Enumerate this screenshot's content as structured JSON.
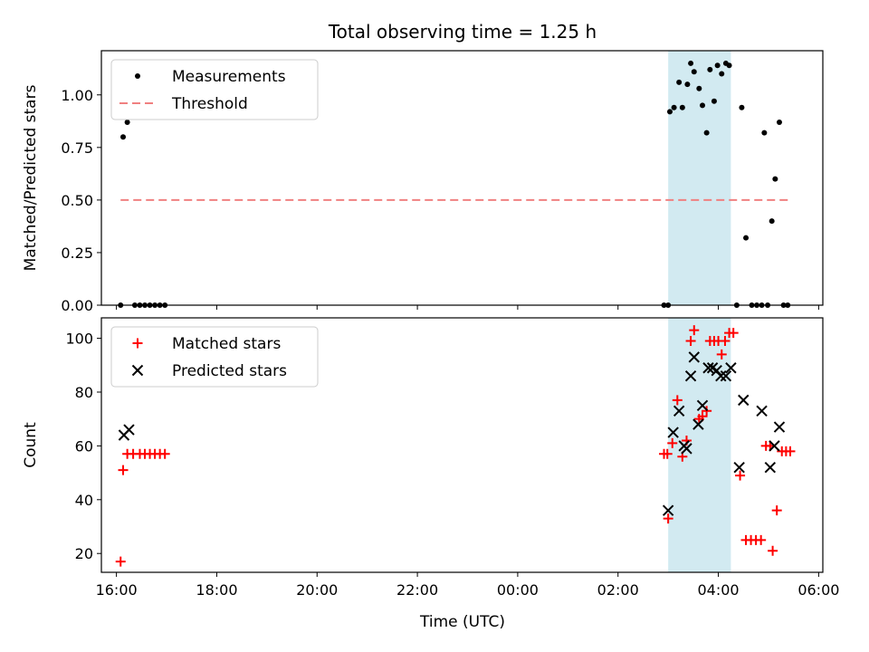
{
  "figure": {
    "title": "Total observing time = 1.25 h",
    "xlabel": "Time (UTC)"
  },
  "chart_data": [
    {
      "type": "scatter",
      "ylabel": "Matched/Predicted stars",
      "xlim": [
        "15:42",
        "06:05"
      ],
      "ylim": [
        0,
        1.21
      ],
      "xticks": [
        "16:00",
        "18:00",
        "20:00",
        "22:00",
        "00:00",
        "02:00",
        "04:00",
        "06:00"
      ],
      "yticks": [
        "0.00",
        "0.25",
        "0.50",
        "0.75",
        "1.00"
      ],
      "ytick_values": [
        0,
        0.25,
        0.5,
        0.75,
        1.0
      ],
      "shaded_span": {
        "from": "03:00",
        "to": "04:15",
        "color": "#add8e6"
      },
      "legend": {
        "position": "upper-left",
        "entries": [
          "Measurements",
          "Threshold"
        ]
      },
      "series": [
        {
          "name": "Measurements",
          "marker": "dot",
          "color": "#000000",
          "points": [
            [
              "16:05",
              0.0
            ],
            [
              "16:08",
              0.8
            ],
            [
              "16:13",
              0.87
            ],
            [
              "16:22",
              0.0
            ],
            [
              "16:28",
              0.0
            ],
            [
              "16:34",
              0.0
            ],
            [
              "16:40",
              0.0
            ],
            [
              "16:46",
              0.0
            ],
            [
              "16:52",
              0.0
            ],
            [
              "16:58",
              0.0
            ],
            [
              "02:55",
              0.0
            ],
            [
              "03:00",
              0.0
            ],
            [
              "03:02",
              0.92
            ],
            [
              "03:07",
              0.94
            ],
            [
              "03:13",
              1.06
            ],
            [
              "03:17",
              0.94
            ],
            [
              "03:23",
              1.05
            ],
            [
              "03:27",
              1.15
            ],
            [
              "03:31",
              1.11
            ],
            [
              "03:37",
              1.03
            ],
            [
              "03:41",
              0.95
            ],
            [
              "03:46",
              0.82
            ],
            [
              "03:50",
              1.12
            ],
            [
              "03:55",
              0.97
            ],
            [
              "03:59",
              1.14
            ],
            [
              "04:04",
              1.1
            ],
            [
              "04:09",
              1.15
            ],
            [
              "04:13",
              1.14
            ],
            [
              "04:22",
              0.0
            ],
            [
              "04:28",
              0.94
            ],
            [
              "04:33",
              0.32
            ],
            [
              "04:40",
              0.0
            ],
            [
              "04:46",
              0.0
            ],
            [
              "04:52",
              0.0
            ],
            [
              "04:55",
              0.82
            ],
            [
              "04:59",
              0.0
            ],
            [
              "05:04",
              0.4
            ],
            [
              "05:08",
              0.6
            ],
            [
              "05:13",
              0.87
            ],
            [
              "05:18",
              0.0
            ],
            [
              "05:23",
              0.0
            ]
          ]
        },
        {
          "name": "Threshold",
          "line_style": "dashed",
          "color": "#f08080",
          "points": [
            [
              "16:05",
              0.5
            ],
            [
              "05:25",
              0.5
            ]
          ]
        }
      ]
    },
    {
      "type": "scatter",
      "ylabel": "Count",
      "xlim": [
        "15:42",
        "06:05"
      ],
      "ylim": [
        13,
        107.6
      ],
      "xticks": [
        "16:00",
        "18:00",
        "20:00",
        "22:00",
        "00:00",
        "02:00",
        "04:00",
        "06:00"
      ],
      "yticks": [
        "20",
        "40",
        "60",
        "80",
        "100"
      ],
      "ytick_values": [
        20,
        40,
        60,
        80,
        100
      ],
      "shaded_span": {
        "from": "03:00",
        "to": "04:15",
        "color": "#add8e6"
      },
      "legend": {
        "position": "upper-left",
        "entries": [
          "Matched stars",
          "Predicted stars"
        ]
      },
      "series": [
        {
          "name": "Matched stars",
          "marker": "plus",
          "color": "#ff0000",
          "points": [
            [
              "16:05",
              17
            ],
            [
              "16:08",
              51
            ],
            [
              "16:13",
              57
            ],
            [
              "16:20",
              57
            ],
            [
              "16:28",
              57
            ],
            [
              "16:34",
              57
            ],
            [
              "16:40",
              57
            ],
            [
              "16:46",
              57
            ],
            [
              "16:52",
              57
            ],
            [
              "16:58",
              57
            ],
            [
              "02:55",
              57
            ],
            [
              "02:59",
              57
            ],
            [
              "03:00",
              33
            ],
            [
              "03:05",
              61
            ],
            [
              "03:11",
              77
            ],
            [
              "03:17",
              56
            ],
            [
              "03:22",
              62
            ],
            [
              "03:27",
              99
            ],
            [
              "03:31",
              103
            ],
            [
              "03:37",
              70
            ],
            [
              "03:41",
              71
            ],
            [
              "03:46",
              73
            ],
            [
              "03:50",
              99
            ],
            [
              "03:55",
              99
            ],
            [
              "04:00",
              99
            ],
            [
              "04:04",
              94
            ],
            [
              "04:08",
              99
            ],
            [
              "04:13",
              102
            ],
            [
              "04:18",
              102
            ],
            [
              "04:26",
              49
            ],
            [
              "04:33",
              25
            ],
            [
              "04:39",
              25
            ],
            [
              "04:45",
              25
            ],
            [
              "04:51",
              25
            ],
            [
              "04:57",
              60
            ],
            [
              "05:02",
              60
            ],
            [
              "05:05",
              21
            ],
            [
              "05:10",
              36
            ],
            [
              "05:16",
              58
            ],
            [
              "05:21",
              58
            ],
            [
              "05:26",
              58
            ]
          ]
        },
        {
          "name": "Predicted stars",
          "marker": "x",
          "color": "#000000",
          "points": [
            [
              "16:09",
              64
            ],
            [
              "16:15",
              66
            ],
            [
              "03:00",
              36
            ],
            [
              "03:06",
              65
            ],
            [
              "03:13",
              73
            ],
            [
              "03:19",
              60
            ],
            [
              "03:22",
              59
            ],
            [
              "03:27",
              86
            ],
            [
              "03:31",
              93
            ],
            [
              "03:36",
              68
            ],
            [
              "03:41",
              75
            ],
            [
              "03:48",
              89
            ],
            [
              "03:53",
              89
            ],
            [
              "03:58",
              88
            ],
            [
              "04:03",
              86
            ],
            [
              "04:09",
              86
            ],
            [
              "04:15",
              89
            ],
            [
              "04:25",
              52
            ],
            [
              "04:30",
              77
            ],
            [
              "04:52",
              73
            ],
            [
              "05:02",
              52
            ],
            [
              "05:07",
              60
            ],
            [
              "05:13",
              67
            ]
          ]
        }
      ]
    }
  ]
}
